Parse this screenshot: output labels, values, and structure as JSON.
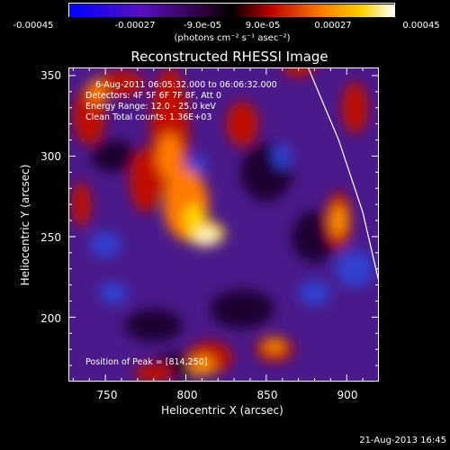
{
  "chart_data": {
    "type": "heatmap",
    "title": "Reconstructed RHESSI Image",
    "xlabel": "Heliocentric X (arcsec)",
    "ylabel": "Heliocentric Y (arcsec)",
    "xlim": [
      727,
      920
    ],
    "ylim": [
      160,
      355
    ],
    "x_ticks": [
      "750",
      "800",
      "850",
      "900"
    ],
    "y_ticks": [
      "200",
      "250",
      "300",
      "350"
    ],
    "colorbar": {
      "ticks": [
        "-0.00045",
        "-0.00027",
        "-9.0e-05",
        "9.0e-05",
        "0.00027",
        "0.00045"
      ],
      "range": [
        -0.00045,
        0.00045
      ],
      "unit_line": "(photons cm⁻² s⁻¹ asec⁻²)"
    },
    "annotations": {
      "time_range": "6-Aug-2011 06:05:32.000 to 06:06:32.000",
      "detectors": "Detectors: 4F 5F 6F 7F 8F, Att 0",
      "energy": "Energy Range: 12.0 - 25.0 keV",
      "clean": "Clean     Total counts: 1.36E+03",
      "peak": "Position of Peak = [814,250]"
    },
    "peak": {
      "x": 814,
      "y": 250
    },
    "limb_curve": [
      [
        876,
        355
      ],
      [
        895,
        310
      ],
      [
        910,
        265
      ],
      [
        920,
        222
      ]
    ],
    "colormap": [
      "#0000ff",
      "#6a0dad",
      "#000000",
      "#ff0000",
      "#ffa000",
      "#ffffff"
    ]
  },
  "footer": {
    "timestamp": "21-Aug-2013 16:45"
  }
}
